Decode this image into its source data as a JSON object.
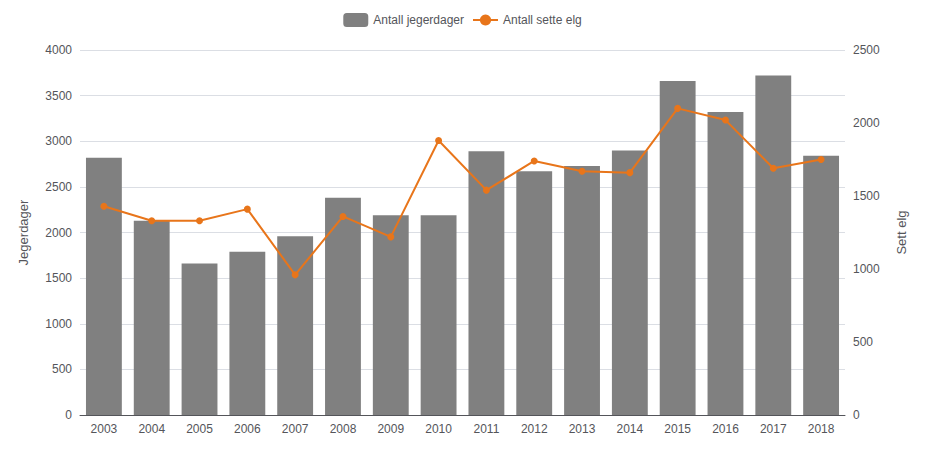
{
  "chart_data": {
    "type": "bar",
    "categories": [
      "2003",
      "2004",
      "2005",
      "2006",
      "2007",
      "2008",
      "2009",
      "2010",
      "2011",
      "2012",
      "2013",
      "2014",
      "2015",
      "2016",
      "2017",
      "2018"
    ],
    "series": [
      {
        "name": "Antall jegerdager",
        "type": "bar",
        "color": "#808080",
        "values": [
          2820,
          2130,
          1660,
          1790,
          1960,
          2380,
          2190,
          2190,
          2890,
          2670,
          2730,
          2900,
          3660,
          3320,
          3720,
          2840
        ]
      },
      {
        "name": "Antall sette elg",
        "type": "line",
        "color": "#E8751A",
        "marker": "circle",
        "axis": "y2",
        "values": [
          1430,
          1330,
          1330,
          1410,
          960,
          1360,
          1220,
          1880,
          1540,
          1740,
          1670,
          1660,
          2100,
          2020,
          1690,
          1750
        ]
      }
    ],
    "ylabel": "Jegerdager",
    "y2label": "Sett elg",
    "ylim": [
      0,
      4000
    ],
    "yticks": [
      0,
      500,
      1000,
      1500,
      2000,
      2500,
      3000,
      3500,
      4000
    ],
    "y2lim": [
      0,
      2500
    ],
    "y2ticks": [
      0,
      500,
      1000,
      1500,
      2000,
      2500
    ],
    "grid": true,
    "legend": "top"
  }
}
